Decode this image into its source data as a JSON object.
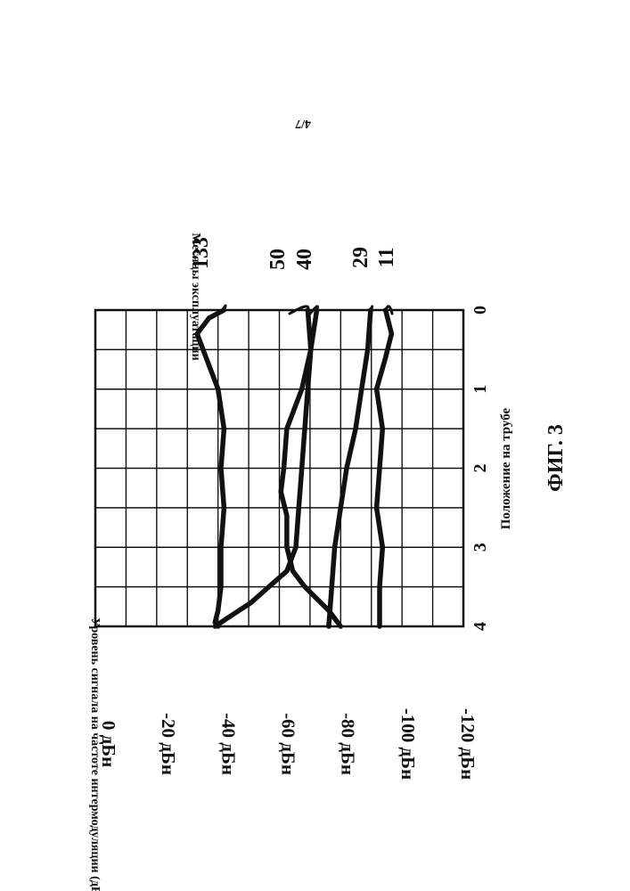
{
  "page_number": "4/7",
  "figure_label": "ФИГ. 3",
  "chart_data": {
    "type": "line",
    "x_axis_label": "Положение на трубе",
    "y_axis_label": "Уровень сигнала на частоте интермодуляции (дБн)",
    "legend_title": "Месяцы эксплуатации",
    "x_ticks": [
      "0",
      "1",
      "2",
      "3",
      "4"
    ],
    "y_ticks": [
      "0 дБн",
      "-20 дБн",
      "-40 дБн",
      "-60 дБн",
      "-80 дБн",
      "-100 дБн",
      "-120 дБн"
    ],
    "xlim": [
      0,
      4
    ],
    "ylim": [
      -123,
      0
    ],
    "grid": true,
    "series": [
      {
        "name": "133",
        "x": [
          0,
          0.1,
          0.3,
          0.6,
          1.0,
          1.5,
          2.0,
          2.5,
          3.0,
          3.5,
          3.8,
          3.95,
          4.0
        ],
        "y": [
          -43,
          -38,
          -34,
          -37,
          -41,
          -43,
          -42,
          -43,
          -42,
          -42,
          -41,
          -40,
          -41
        ]
      },
      {
        "name": "50",
        "x": [
          0,
          0.5,
          1.0,
          1.5,
          2.0,
          2.3,
          2.6,
          3.0,
          3.3,
          3.5,
          3.8,
          4.0
        ],
        "y": [
          -71,
          -72,
          -69,
          -64,
          -63,
          -62,
          -64,
          -64,
          -66,
          -70,
          -78,
          -82
        ]
      },
      {
        "name": "40",
        "x": [
          0,
          0.5,
          1.0,
          1.5,
          2.0,
          2.5,
          3.0,
          3.3,
          3.5,
          3.7,
          3.9,
          4.0
        ],
        "y": [
          -74,
          -72,
          -71,
          -70,
          -69,
          -68,
          -67,
          -64,
          -58,
          -52,
          -44,
          -40
        ]
      },
      {
        "name": "29",
        "x": [
          0,
          0.5,
          1.0,
          1.5,
          2.0,
          2.5,
          3.0,
          3.5,
          4.0
        ],
        "y": [
          -92,
          -91,
          -89,
          -87,
          -84,
          -82,
          -80,
          -79,
          -78
        ]
      },
      {
        "name": "11",
        "x": [
          0,
          0.3,
          0.6,
          1.0,
          1.5,
          2.0,
          2.5,
          3.0,
          3.5,
          4.0
        ],
        "y": [
          -97,
          -99,
          -97,
          -94,
          -96,
          -95,
          -94,
          -96,
          -95,
          -95
        ]
      }
    ]
  }
}
